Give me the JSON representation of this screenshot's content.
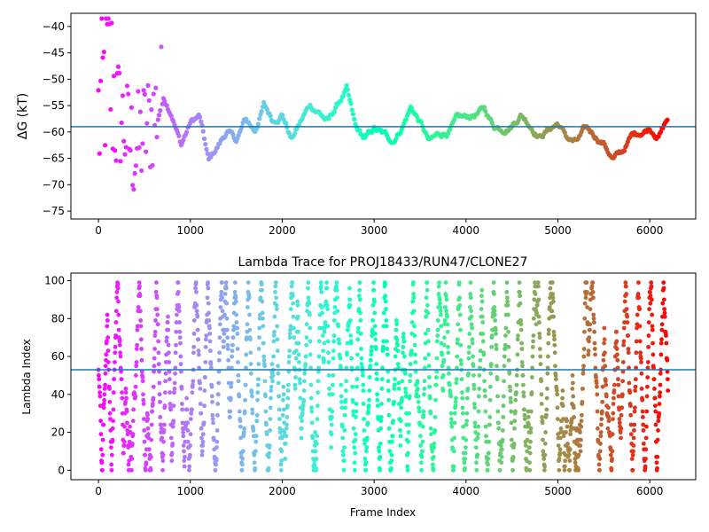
{
  "chart_data": [
    {
      "type": "scatter",
      "title": "",
      "xlabel": "",
      "ylabel": "ΔG (kT)",
      "xlim": [
        -300,
        6500
      ],
      "ylim": [
        -76.5,
        -37.5
      ],
      "xticks": [
        0,
        1000,
        2000,
        3000,
        4000,
        5000,
        6000
      ],
      "yticks": [
        -75,
        -70,
        -65,
        -60,
        -55,
        -50,
        -45,
        -40
      ],
      "hline": -59,
      "hline_color": "#1f77b4",
      "colormap": "rainbow (red → violet with frame index)",
      "n_frames": 6200,
      "trend": [
        [
          0,
          -58
        ],
        [
          100,
          -47
        ],
        [
          200,
          -55
        ],
        [
          300,
          -60
        ],
        [
          400,
          -64
        ],
        [
          500,
          -60
        ],
        [
          600,
          -57
        ],
        [
          700,
          -53
        ],
        [
          800,
          -56
        ],
        [
          900,
          -62
        ],
        [
          1000,
          -58
        ],
        [
          1100,
          -57
        ],
        [
          1200,
          -66
        ],
        [
          1300,
          -63
        ],
        [
          1400,
          -60
        ],
        [
          1500,
          -62
        ],
        [
          1600,
          -58
        ],
        [
          1700,
          -60
        ],
        [
          1800,
          -55
        ],
        [
          1900,
          -58
        ],
        [
          2000,
          -56
        ],
        [
          2100,
          -61
        ],
        [
          2200,
          -58
        ],
        [
          2300,
          -55
        ],
        [
          2400,
          -56
        ],
        [
          2500,
          -58
        ],
        [
          2600,
          -55
        ],
        [
          2700,
          -52
        ],
        [
          2800,
          -60
        ],
        [
          2900,
          -62
        ],
        [
          3000,
          -60
        ],
        [
          3100,
          -61
        ],
        [
          3200,
          -62
        ],
        [
          3300,
          -59
        ],
        [
          3400,
          -55
        ],
        [
          3500,
          -58
        ],
        [
          3600,
          -62
        ],
        [
          3700,
          -61
        ],
        [
          3800,
          -60
        ],
        [
          3900,
          -58
        ],
        [
          4000,
          -58
        ],
        [
          4100,
          -57
        ],
        [
          4200,
          -56
        ],
        [
          4300,
          -59
        ],
        [
          4400,
          -59
        ],
        [
          4500,
          -58
        ],
        [
          4600,
          -56
        ],
        [
          4700,
          -58
        ],
        [
          4800,
          -60
        ],
        [
          4900,
          -59
        ],
        [
          5000,
          -58
        ],
        [
          5100,
          -61
        ],
        [
          5200,
          -62
        ],
        [
          5300,
          -60
        ],
        [
          5400,
          -61
        ],
        [
          5500,
          -62
        ],
        [
          5600,
          -65
        ],
        [
          5700,
          -64
        ],
        [
          5800,
          -61
        ],
        [
          5900,
          -60
        ],
        [
          6000,
          -59
        ],
        [
          6100,
          -60
        ],
        [
          6200,
          -57
        ]
      ]
    },
    {
      "type": "scatter",
      "title": "Lambda Trace for PROJ18433/RUN47/CLONE27",
      "xlabel": "Frame Index",
      "ylabel": "Lambda Index",
      "xlim": [
        -300,
        6500
      ],
      "ylim": [
        -5,
        104
      ],
      "xticks": [
        0,
        1000,
        2000,
        3000,
        4000,
        5000,
        6000
      ],
      "yticks": [
        0,
        20,
        40,
        60,
        80,
        100
      ],
      "hline": 53,
      "hline_color": "#1f77b4",
      "colormap": "rainbow (red → violet with frame index)",
      "n_frames": 6200,
      "lambda_range": [
        0,
        99
      ]
    }
  ]
}
